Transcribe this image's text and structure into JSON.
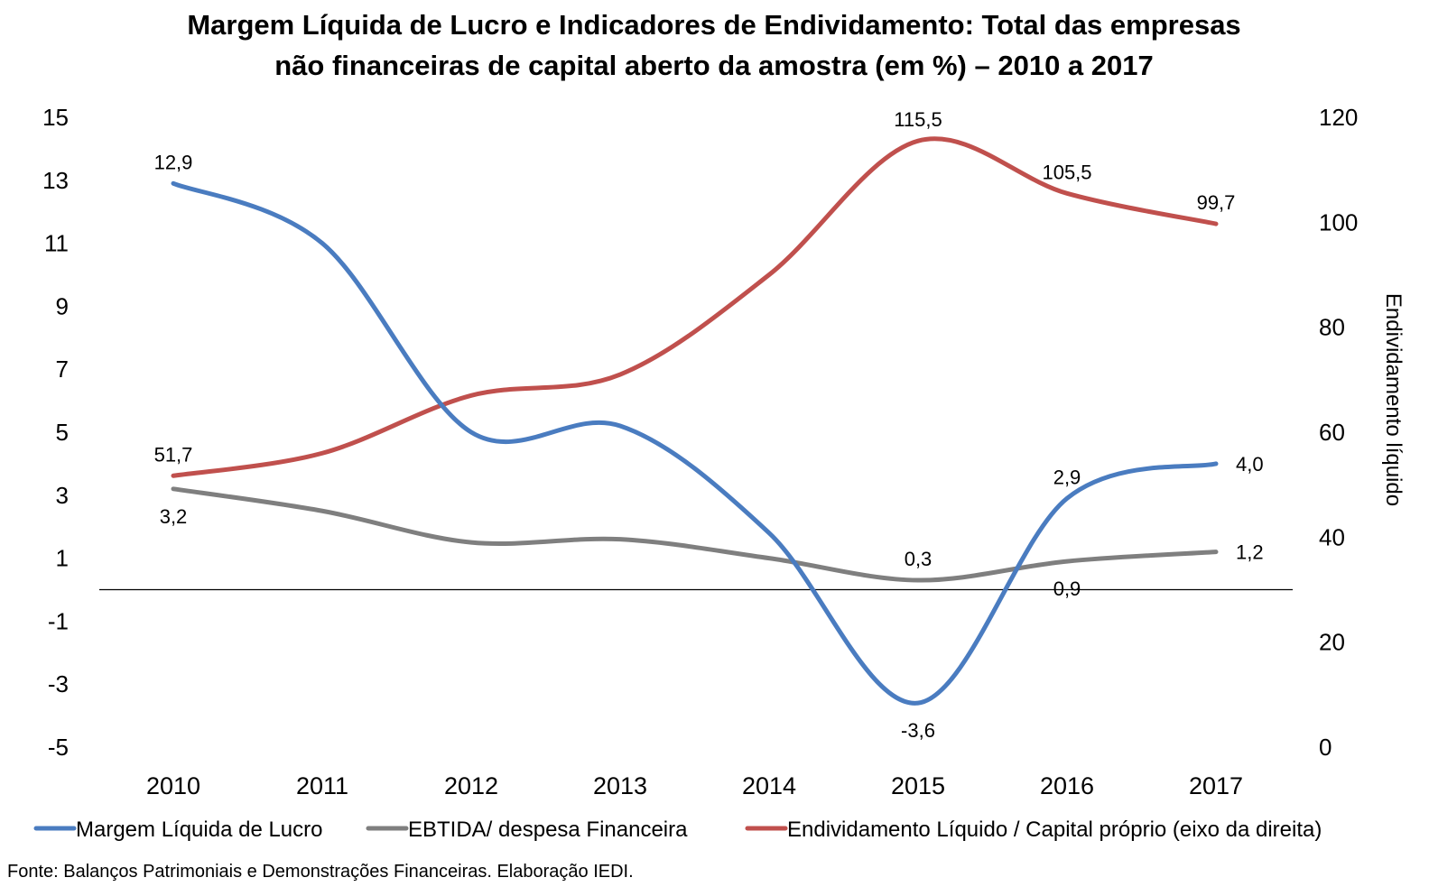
{
  "chart_data": {
    "type": "line",
    "title": [
      "Margem Líquida de Lucro e Indicadores de Endividamento: Total das empresas",
      "não financeiras de capital aberto da amostra (em %) – 2010 a 2017"
    ],
    "categories": [
      "2010",
      "2011",
      "2012",
      "2013",
      "2014",
      "2015",
      "2016",
      "2017"
    ],
    "y_left": {
      "min": -5,
      "max": 15,
      "ticks": [
        15,
        13,
        11,
        9,
        7,
        5,
        3,
        1,
        -1,
        -3,
        -5
      ],
      "tick_labels": [
        "15",
        "13",
        "11",
        "9",
        "7",
        "5",
        "3",
        "1",
        "-1",
        "-3",
        "-5"
      ]
    },
    "y_right": {
      "min": 0,
      "max": 120,
      "ticks": [
        120,
        100,
        80,
        60,
        40,
        20,
        0
      ],
      "tick_labels": [
        "120",
        "100",
        "80",
        "60",
        "40",
        "20",
        "0"
      ],
      "label": "Endividamento líquido"
    },
    "zero_line": true,
    "grid": false,
    "legend_position": "bottom",
    "series": [
      {
        "name": "Margem Líquida de Lucro",
        "axis": "left",
        "color": "#4a7cc0",
        "values": [
          12.9,
          11.0,
          5.0,
          5.2,
          1.8,
          -3.6,
          2.9,
          4.0
        ],
        "labels": [
          {
            "index": 0,
            "text": "12,9",
            "position": "above"
          },
          {
            "index": 5,
            "text": "-3,6",
            "position": "below"
          },
          {
            "index": 6,
            "text": "2,9",
            "position": "above"
          },
          {
            "index": 7,
            "text": "4,0",
            "position": "right"
          }
        ]
      },
      {
        "name": "EBTIDA/ despesa Financeira",
        "axis": "left",
        "color": "#7f7f7f",
        "values": [
          3.2,
          2.5,
          1.5,
          1.6,
          1.0,
          0.3,
          0.9,
          1.2
        ],
        "labels": [
          {
            "index": 0,
            "text": "3,2",
            "position": "below"
          },
          {
            "index": 5,
            "text": "0,3",
            "position": "above"
          },
          {
            "index": 6,
            "text": "0,9",
            "position": "below"
          },
          {
            "index": 7,
            "text": "1,2",
            "position": "right"
          }
        ]
      },
      {
        "name": "Endividamento Líquido / Capital próprio (eixo da direita)",
        "axis": "right",
        "color": "#c0504d",
        "values": [
          51.7,
          56.0,
          67.0,
          71.0,
          90.0,
          115.5,
          105.5,
          99.7
        ],
        "labels": [
          {
            "index": 0,
            "text": "51,7",
            "position": "above"
          },
          {
            "index": 5,
            "text": "115,5",
            "position": "above"
          },
          {
            "index": 6,
            "text": "105,5",
            "position": "above"
          },
          {
            "index": 7,
            "text": "99,7",
            "position": "above"
          }
        ]
      }
    ],
    "source": "Fonte: Balanços Patrimoniais e Demonstrações Financeiras. Elaboração IEDI."
  }
}
